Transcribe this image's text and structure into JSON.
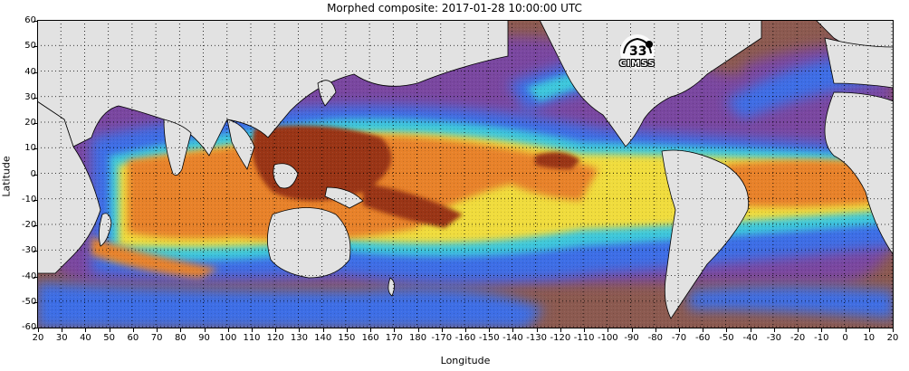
{
  "title": "Morphed composite: 2017-01-28 10:00:00 UTC",
  "y_axis_label": "Latitude",
  "x_axis_label": "Longitude",
  "lat_ticks": [
    "60",
    "50",
    "40",
    "30",
    "20",
    "10",
    "0",
    "-10",
    "-20",
    "-30",
    "-40",
    "-50",
    "-60"
  ],
  "lat_values": [
    60,
    50,
    40,
    30,
    20,
    10,
    0,
    -10,
    -20,
    -30,
    -40,
    -50,
    -60
  ],
  "lon_ticks": [
    "20",
    "30",
    "40",
    "50",
    "60",
    "70",
    "80",
    "90",
    "100",
    "110",
    "120",
    "130",
    "140",
    "150",
    "160",
    "170",
    "180",
    "-170",
    "-160",
    "-150",
    "-140",
    "-130",
    "-120",
    "-110",
    "-100",
    "-90",
    "-80",
    "-70",
    "-60",
    "-50",
    "-40",
    "-30",
    "-20",
    "-10",
    "0",
    "10",
    "20"
  ],
  "lon_values": [
    20,
    30,
    40,
    50,
    60,
    70,
    80,
    90,
    100,
    110,
    120,
    130,
    140,
    150,
    160,
    170,
    180,
    190,
    200,
    210,
    220,
    230,
    240,
    250,
    260,
    270,
    280,
    290,
    300,
    310,
    320,
    330,
    340,
    350,
    360,
    370,
    380
  ],
  "logo_text": "CIMSS",
  "colors": {
    "land": "#e2e2e2",
    "dry": "#8c5a50",
    "purple": "#7a46a0",
    "blue": "#3c6ee6",
    "cyan": "#3cc8dc",
    "green": "#a0dc78",
    "yellow": "#f0dc3c",
    "orange": "#e8822c",
    "brown": "#9a3412"
  }
}
